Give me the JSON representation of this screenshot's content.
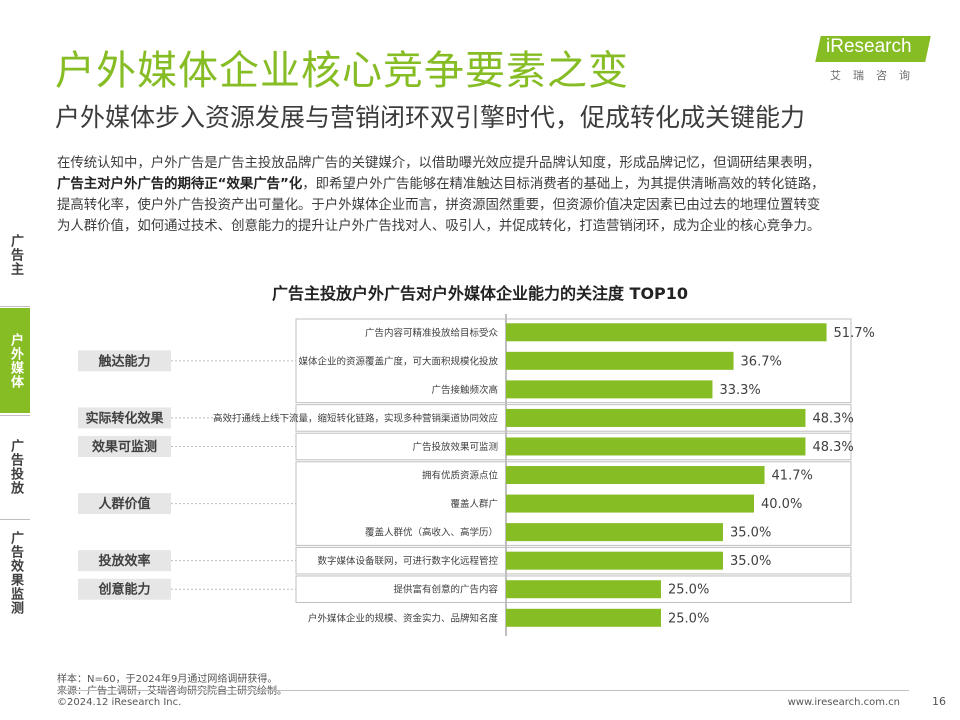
{
  "header": {
    "title": "户外媒体企业核心竞争要素之变",
    "subtitle": "户外媒体步入资源发展与营销闭环双引擎时代，促成转化成关键能力"
  },
  "logo": {
    "brand": "iResearch",
    "sub": "艾瑞咨询"
  },
  "intro": {
    "line1": "在传统认知中，户外广告是广告主投放品牌广告的关键媒介，以借助曝光效应提升品牌认知度，形成品牌记忆，但调研结果表明，",
    "line2_bold": "广告主对户外广告的期待正“效果广告”化",
    "line2_rest": "，即希望户外广告能够在精准触达目标消费者的基础上，为其提供清晰高效的转化链路，",
    "line3": "提高转化率，使户外广告投资产出可量化。于户外媒体企业而言，拼资源固然重要，但资源价值决定因素已由过去的地理位置转变",
    "line4": "为人群价值，如何通过技术、创意能力的提升让户外广告找对人、吸引人，并促成转化，打造营销闭环，成为企业的核心竞争力。"
  },
  "sidebar": {
    "items": [
      {
        "label": "广告主",
        "active": false
      },
      {
        "label": "户外媒体",
        "active": true
      },
      {
        "label": "广告投放",
        "active": false
      },
      {
        "label": "广告效果监测",
        "active": false
      }
    ]
  },
  "colors": {
    "accent": "#86bc24",
    "group_box": "#e6e6e6",
    "text": "#404040"
  },
  "chart_data": {
    "type": "bar",
    "orientation": "horizontal",
    "title": "广告主投放户外广告对户外媒体企业能力的关注度 TOP10",
    "categories": [
      "广告内容可精准投放给目标受众",
      "媒体企业的资源覆盖广度，可大面积规模化投放",
      "广告接触频次高",
      "高效打通线上线下流量，缩短转化链路，实现多种营销渠道协同效应",
      "广告投放效果可监测",
      "拥有优质资源点位",
      "覆盖人群广",
      "覆盖人群优（高收入、高学历）",
      "数字媒体设备联网，可进行数字化远程管控",
      "提供富有创意的广告内容",
      "户外媒体企业的规模、资金实力、品牌知名度"
    ],
    "values": [
      51.7,
      36.7,
      33.3,
      48.3,
      48.3,
      41.7,
      40.0,
      35.0,
      35.0,
      25.0,
      25.0
    ],
    "value_labels": [
      "51.7%",
      "36.7%",
      "33.3%",
      "48.3%",
      "48.3%",
      "41.7%",
      "40.0%",
      "35.0%",
      "35.0%",
      "25.0%",
      "25.0%"
    ],
    "groups": [
      {
        "label": "触达能力",
        "rows": [
          0,
          1,
          2
        ]
      },
      {
        "label": "实际转化效果",
        "rows": [
          3
        ]
      },
      {
        "label": "效果可监测",
        "rows": [
          4
        ]
      },
      {
        "label": "人群价值",
        "rows": [
          5,
          6,
          7
        ]
      },
      {
        "label": "投放效率",
        "rows": [
          8
        ]
      },
      {
        "label": "创意能力",
        "rows": [
          9
        ]
      }
    ],
    "xlim": [
      0,
      60
    ],
    "grid": false,
    "legend": "none"
  },
  "footer": {
    "sample": "样本：N=60，于2024年9月通过网络调研获得。",
    "source": "来源：广告主调研，艾瑞咨询研究院自主研究绘制。",
    "copyright": "©2024.12 iResearch Inc.",
    "website": "www.iresearch.com.cn",
    "page": "16"
  }
}
